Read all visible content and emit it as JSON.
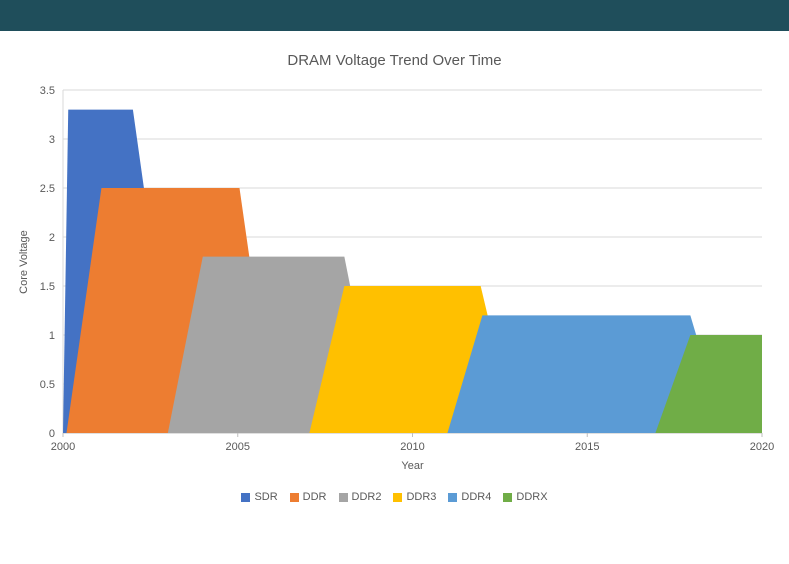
{
  "window": {
    "titlebar_label": ""
  },
  "colors": {
    "titlebar": "#1F4E5B",
    "grid": "#D9D9D9",
    "axis": "#BFBFBF",
    "text": "#595959",
    "background": "#FFFFFF"
  },
  "chart_data": {
    "type": "area",
    "title": "DRAM Voltage Trend Over Time",
    "xlabel": "Year",
    "ylabel": "Core Voltage",
    "xlim": [
      2000,
      2020
    ],
    "ylim": [
      0,
      3.5
    ],
    "xticks": [
      2000,
      2005,
      2010,
      2015,
      2020
    ],
    "yticks": [
      0,
      0.5,
      1,
      1.5,
      2,
      2.5,
      3,
      3.5
    ],
    "grid": true,
    "legend_position": "bottom",
    "series": [
      {
        "name": "SDR",
        "color": "#4472C4",
        "peak_voltage": 3.3,
        "points": [
          [
            2000,
            0
          ],
          [
            2000.15,
            3.3
          ],
          [
            2002,
            3.3
          ],
          [
            2003.3,
            0
          ]
        ]
      },
      {
        "name": "DDR",
        "color": "#ED7D31",
        "peak_voltage": 2.5,
        "points": [
          [
            2000.1,
            0
          ],
          [
            2001.1,
            2.5
          ],
          [
            2005.05,
            2.5
          ],
          [
            2006.05,
            0
          ]
        ]
      },
      {
        "name": "DDR2",
        "color": "#A5A5A5",
        "peak_voltage": 1.8,
        "points": [
          [
            2003,
            0
          ],
          [
            2004,
            1.8
          ],
          [
            2008.05,
            1.8
          ],
          [
            2009.05,
            0
          ]
        ]
      },
      {
        "name": "DDR3",
        "color": "#FFC000",
        "peak_voltage": 1.5,
        "points": [
          [
            2007.05,
            0
          ],
          [
            2008.05,
            1.5
          ],
          [
            2011.95,
            1.5
          ],
          [
            2012.95,
            0
          ]
        ]
      },
      {
        "name": "DDR4",
        "color": "#5B9BD5",
        "peak_voltage": 1.2,
        "points": [
          [
            2011,
            0
          ],
          [
            2012,
            1.2
          ],
          [
            2017.95,
            1.2
          ],
          [
            2018.95,
            0
          ]
        ]
      },
      {
        "name": "DDRX",
        "color": "#70AD47",
        "peak_voltage": 1.0,
        "points": [
          [
            2016.95,
            0
          ],
          [
            2017.95,
            1.0
          ],
          [
            2020,
            1.0
          ],
          [
            2020,
            0
          ]
        ]
      }
    ]
  }
}
